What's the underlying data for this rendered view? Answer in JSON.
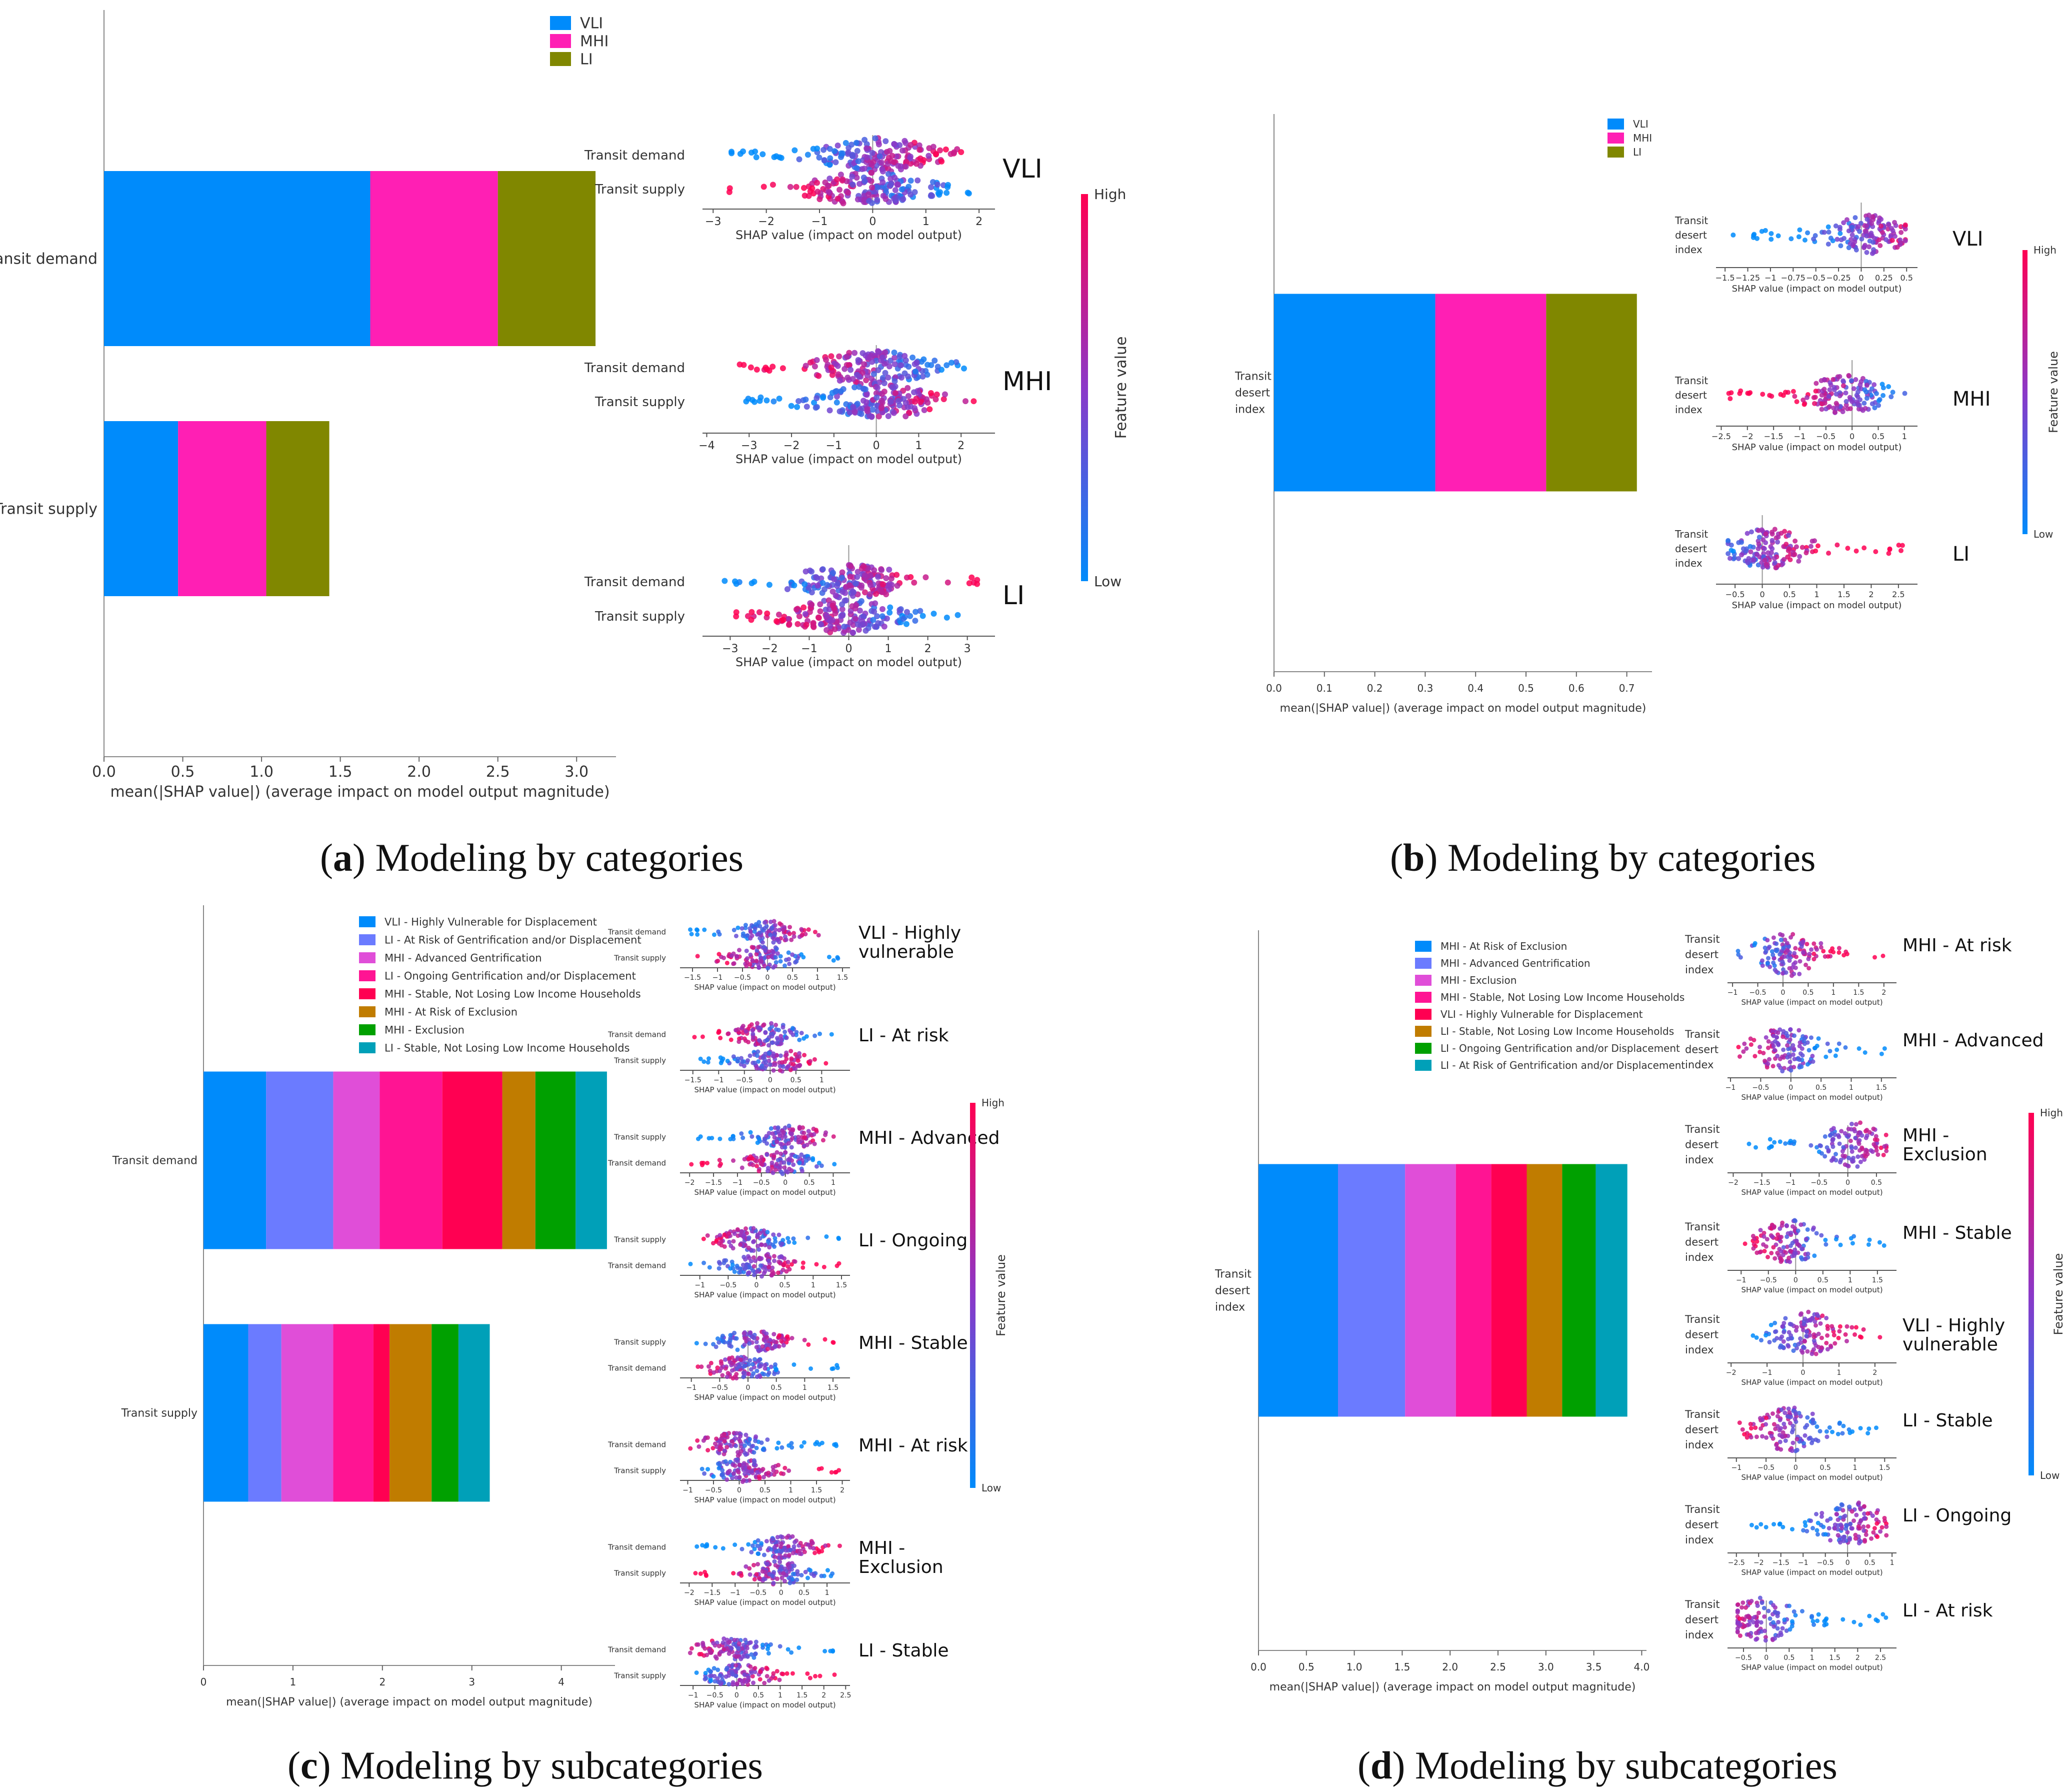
{
  "captions": {
    "a": {
      "letter": "a",
      "text": "Modeling by categories"
    },
    "b": {
      "letter": "b",
      "text": "Modeling by categories"
    },
    "c": {
      "letter": "c",
      "text": "Modeling by subcategories"
    },
    "d": {
      "letter": "d",
      "text": "Modeling by subcategories"
    }
  },
  "colors": {
    "VLI": "#008bfb",
    "MHI": "#ff1fb4",
    "LI": "#808700",
    "sub1": "#008bfb",
    "sub2": "#6b7bff",
    "sub3": "#e04ed8",
    "sub4": "#ff1493",
    "sub5": "#ff0052",
    "sub6": "#c07c00",
    "sub7": "#00a000",
    "sub8": "#00a0b8",
    "low": "#008bfb",
    "high": "#ff0052",
    "mid": "#8b38c8"
  },
  "common": {
    "colorbar_high": "High",
    "colorbar_low": "Low",
    "colorbar_title": "Feature value",
    "bar_xlabel": "mean(|SHAP value|) (average impact on model output magnitude)",
    "bee_xlabel": "SHAP value (impact on model output)"
  },
  "chart_data": [
    {
      "id": "a",
      "type": "bar",
      "stacked": true,
      "orientation": "horizontal",
      "categories": [
        "Transit demand",
        "Transit supply"
      ],
      "series": [
        {
          "name": "VLI",
          "values": [
            1.69,
            0.47
          ]
        },
        {
          "name": "MHI",
          "values": [
            0.81,
            0.56
          ]
        },
        {
          "name": "LI",
          "values": [
            0.62,
            0.4
          ]
        }
      ],
      "xticks": [
        0.0,
        0.5,
        1.0,
        1.5,
        2.0,
        2.5,
        3.0
      ],
      "xlim": [
        0,
        3.25
      ],
      "legend": [
        "VLI",
        "MHI",
        "LI"
      ],
      "beeswarms": [
        {
          "label": "VLI",
          "features": [
            "Transit demand",
            "Transit supply"
          ],
          "xticks": [
            -3,
            -2,
            -1,
            0,
            1,
            2
          ],
          "xlim": [
            -3.2,
            2.3
          ]
        },
        {
          "label": "MHI",
          "features": [
            "Transit demand",
            "Transit supply"
          ],
          "xticks": [
            -4,
            -3,
            -2,
            -1,
            0,
            1,
            2
          ],
          "xlim": [
            -4.1,
            2.8
          ]
        },
        {
          "label": "LI",
          "features": [
            "Transit demand",
            "Transit supply"
          ],
          "xticks": [
            -3,
            -2,
            -1,
            0,
            1,
            2,
            3
          ],
          "xlim": [
            -3.7,
            3.7
          ]
        }
      ]
    },
    {
      "id": "b",
      "type": "bar",
      "stacked": true,
      "orientation": "horizontal",
      "categories": [
        "Transit desert index"
      ],
      "series": [
        {
          "name": "VLI",
          "values": [
            0.32
          ]
        },
        {
          "name": "MHI",
          "values": [
            0.22
          ]
        },
        {
          "name": "LI",
          "values": [
            0.18
          ]
        }
      ],
      "xticks": [
        0.0,
        0.1,
        0.2,
        0.3,
        0.4,
        0.5,
        0.6,
        0.7
      ],
      "xlim": [
        0,
        0.75
      ],
      "legend": [
        "VLI",
        "MHI",
        "LI"
      ],
      "beeswarms": [
        {
          "label": "VLI",
          "features": [
            "Transit desert index"
          ],
          "xticks": [
            -1.5,
            -1.25,
            -1.0,
            -0.75,
            -0.5,
            -0.25,
            0.0,
            0.25,
            0.5
          ],
          "xlim": [
            -1.6,
            0.62
          ]
        },
        {
          "label": "MHI",
          "features": [
            "Transit desert index"
          ],
          "xticks": [
            -2.5,
            -2.0,
            -1.5,
            -1.0,
            -0.5,
            0.0,
            0.5,
            1.0
          ],
          "xlim": [
            -2.6,
            1.25
          ]
        },
        {
          "label": "LI",
          "features": [
            "Transit desert index"
          ],
          "xticks": [
            -0.5,
            0.0,
            0.5,
            1.0,
            1.5,
            2.0,
            2.5
          ],
          "xlim": [
            -0.85,
            2.85
          ]
        }
      ]
    },
    {
      "id": "c",
      "type": "bar",
      "stacked": true,
      "orientation": "horizontal",
      "categories": [
        "Transit demand",
        "Transit supply"
      ],
      "series": [
        {
          "name": "VLI - Highly Vulnerable for Displacement",
          "values": [
            0.7,
            0.5
          ]
        },
        {
          "name": "LI - At Risk of Gentrification and/or Displacement",
          "values": [
            0.75,
            0.37
          ]
        },
        {
          "name": "MHI - Advanced Gentrification",
          "values": [
            0.52,
            0.58
          ]
        },
        {
          "name": "LI - Ongoing Gentrification and/or Displacement",
          "values": [
            0.7,
            0.45
          ]
        },
        {
          "name": "MHI - Stable, Not Losing Low Income Households",
          "values": [
            0.67,
            0.18
          ]
        },
        {
          "name": "MHI - At Risk of Exclusion",
          "values": [
            0.37,
            0.47
          ]
        },
        {
          "name": "MHI - Exclusion",
          "values": [
            0.45,
            0.3
          ]
        },
        {
          "name": "LI - Stable, Not Losing Low Income Households",
          "values": [
            0.35,
            0.35
          ]
        }
      ],
      "xticks": [
        0,
        1,
        2,
        3,
        4
      ],
      "xlim": [
        0,
        4.6
      ],
      "beeswarms": [
        {
          "label": "VLI - Highly vulnerable",
          "features": [
            "Transit demand",
            "Transit supply"
          ],
          "xticks": [
            -1.5,
            -1.0,
            -0.5,
            0.0,
            0.5,
            1.0,
            1.5
          ],
          "xlim": [
            -1.75,
            1.65
          ]
        },
        {
          "label": "LI - At risk",
          "features": [
            "Transit demand",
            "Transit supply"
          ],
          "xticks": [
            -1.5,
            -1.0,
            -0.5,
            0.0,
            0.5,
            1.0
          ],
          "xlim": [
            -1.75,
            1.55
          ]
        },
        {
          "label": "MHI - Advanced",
          "features": [
            "Transit supply",
            "Transit demand"
          ],
          "xticks": [
            -2.0,
            -1.5,
            -1.0,
            -0.5,
            0.0,
            0.5,
            1.0
          ],
          "xlim": [
            -2.2,
            1.35
          ]
        },
        {
          "label": "LI - Ongoing",
          "features": [
            "Transit supply",
            "Transit demand"
          ],
          "xticks": [
            -1.0,
            -0.5,
            0.0,
            0.5,
            1.0,
            1.5
          ],
          "xlim": [
            -1.35,
            1.65
          ]
        },
        {
          "label": "MHI - Stable",
          "features": [
            "Transit supply",
            "Transit demand"
          ],
          "xticks": [
            -1.0,
            -0.5,
            0.0,
            0.5,
            1.0,
            1.5
          ],
          "xlim": [
            -1.2,
            1.8
          ]
        },
        {
          "label": "MHI - At risk",
          "features": [
            "Transit demand",
            "Transit supply"
          ],
          "xticks": [
            -1.0,
            -0.5,
            0.0,
            0.5,
            1.0,
            1.5,
            2.0
          ],
          "xlim": [
            -1.15,
            2.15
          ]
        },
        {
          "label": "MHI - Exclusion",
          "features": [
            "Transit demand",
            "Transit supply"
          ],
          "xticks": [
            -2.0,
            -1.5,
            -1.0,
            -0.5,
            0.0,
            0.5,
            1.0
          ],
          "xlim": [
            -2.2,
            1.5
          ]
        },
        {
          "label": "LI - Stable",
          "features": [
            "Transit demand",
            "Transit supply"
          ],
          "xticks": [
            -1.0,
            -0.5,
            0.0,
            0.5,
            1.0,
            1.5,
            2.0,
            2.5
          ],
          "xlim": [
            -1.3,
            2.6
          ]
        }
      ]
    },
    {
      "id": "d",
      "type": "bar",
      "stacked": true,
      "orientation": "horizontal",
      "categories": [
        "Transit desert index"
      ],
      "series": [
        {
          "name": "MHI - At Risk of Exclusion",
          "values": [
            0.83
          ]
        },
        {
          "name": "MHI - Advanced Gentrification",
          "values": [
            0.7
          ]
        },
        {
          "name": "MHI - Exclusion",
          "values": [
            0.53
          ]
        },
        {
          "name": "MHI - Stable, Not Losing Low Income Households",
          "values": [
            0.37
          ]
        },
        {
          "name": "VLI - Highly Vulnerable for Displacement",
          "values": [
            0.37
          ]
        },
        {
          "name": "LI - Stable, Not Losing Low Income Households",
          "values": [
            0.37
          ]
        },
        {
          "name": "LI - Ongoing Gentrification and/or Displacement",
          "values": [
            0.35
          ]
        },
        {
          "name": "LI - At Risk of Gentrification and/or Displacement",
          "values": [
            0.33
          ]
        }
      ],
      "xticks": [
        0.0,
        0.5,
        1.0,
        1.5,
        2.0,
        2.5,
        3.0,
        3.5,
        4.0
      ],
      "xlim": [
        0,
        4.05
      ],
      "beeswarms": [
        {
          "label": "MHI - At risk",
          "features": [
            "Transit desert index"
          ],
          "xticks": [
            -1.0,
            -0.5,
            0.0,
            0.5,
            1.0,
            1.5,
            2.0
          ],
          "xlim": [
            -1.1,
            2.25
          ]
        },
        {
          "label": "MHI - Advanced",
          "features": [
            "Transit desert index"
          ],
          "xticks": [
            -1.0,
            -0.5,
            0.0,
            0.5,
            1.0,
            1.5
          ],
          "xlim": [
            -1.05,
            1.75
          ]
        },
        {
          "label": "MHI - Exclusion",
          "features": [
            "Transit desert index"
          ],
          "xticks": [
            -2.0,
            -1.5,
            -1.0,
            -0.5,
            0.0,
            0.5
          ],
          "xlim": [
            -2.1,
            0.85
          ]
        },
        {
          "label": "MHI - Stable",
          "features": [
            "Transit desert index"
          ],
          "xticks": [
            -1.0,
            -0.5,
            0.0,
            0.5,
            1.0,
            1.5
          ],
          "xlim": [
            -1.25,
            1.85
          ]
        },
        {
          "label": "VLI - Highly vulnerable",
          "features": [
            "Transit desert index"
          ],
          "xticks": [
            -2,
            -1,
            0,
            1,
            2
          ],
          "xlim": [
            -2.1,
            2.6
          ]
        },
        {
          "label": "LI - Stable",
          "features": [
            "Transit desert index"
          ],
          "xticks": [
            -1.0,
            -0.5,
            0.0,
            0.5,
            1.0,
            1.5
          ],
          "xlim": [
            -1.15,
            1.7
          ]
        },
        {
          "label": "LI - Ongoing",
          "features": [
            "Transit desert index"
          ],
          "xticks": [
            -2.5,
            -2.0,
            -1.5,
            -1.0,
            -0.5,
            0.0,
            0.5,
            1.0
          ],
          "xlim": [
            -2.7,
            1.1
          ]
        },
        {
          "label": "LI - At risk",
          "features": [
            "Transit desert index"
          ],
          "xticks": [
            -0.5,
            0.0,
            0.5,
            1.0,
            1.5,
            2.0,
            2.5
          ],
          "xlim": [
            -0.85,
            2.85
          ]
        }
      ]
    }
  ]
}
